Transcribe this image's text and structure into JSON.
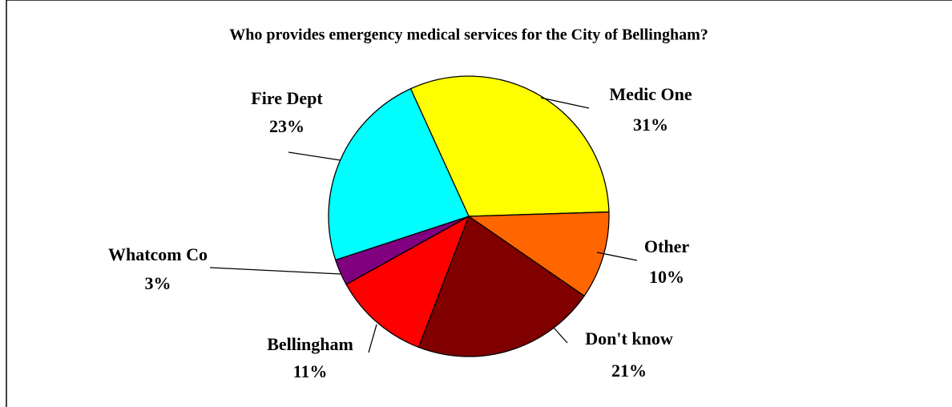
{
  "chart_data": {
    "type": "pie",
    "title": "Who provides emergency medical services for the City of Bellingham?",
    "categories": [
      "Medic One",
      "Other",
      "Don't know",
      "Bellingham",
      "Whatcom Co",
      "Fire Dept"
    ],
    "values": [
      31,
      10,
      21,
      11,
      3,
      23
    ],
    "value_labels": [
      "31%",
      "10%",
      "21%",
      "11%",
      "3%",
      "23%"
    ],
    "colors": [
      "#ffff00",
      "#ff6600",
      "#800000",
      "#ff0000",
      "#800080",
      "#00ffff"
    ]
  }
}
